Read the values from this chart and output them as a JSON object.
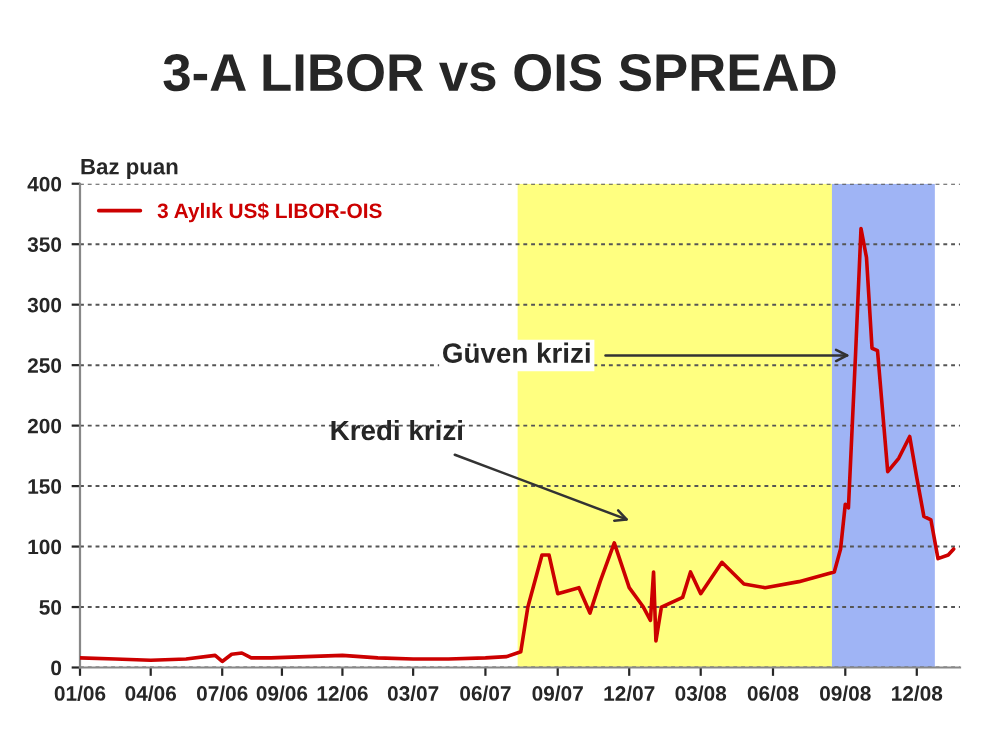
{
  "chart_data": {
    "type": "line",
    "title": "3-A LIBOR vs OIS SPREAD",
    "ylabel": "Baz puan",
    "xlim": [
      "2006-01-01",
      "2009-01-25"
    ],
    "ylim": [
      0,
      400
    ],
    "xticks": [
      {
        "value": "2006-01-01",
        "label": "01/06"
      },
      {
        "value": "2006-04-01",
        "label": "04/06"
      },
      {
        "value": "2006-07-01",
        "label": "07/06"
      },
      {
        "value": "2006-09-15",
        "label": "09/06"
      },
      {
        "value": "2006-12-01",
        "label": "12/06"
      },
      {
        "value": "2007-03-01",
        "label": "03/07"
      },
      {
        "value": "2007-06-01",
        "label": "06/07"
      },
      {
        "value": "2007-09-01",
        "label": "09/07"
      },
      {
        "value": "2007-12-01",
        "label": "12/07"
      },
      {
        "value": "2008-03-01",
        "label": "03/08"
      },
      {
        "value": "2008-06-01",
        "label": "06/08"
      },
      {
        "value": "2008-09-01",
        "label": "09/08"
      },
      {
        "value": "2008-12-01",
        "label": "12/08"
      }
    ],
    "yticks": [
      0,
      50,
      100,
      150,
      200,
      250,
      300,
      350,
      400
    ],
    "grid": "y",
    "legend": "top left",
    "line_style": "solid",
    "marker": "none",
    "bands": [
      {
        "axis": "x",
        "from": "2007-07-12",
        "to": "2008-10-16",
        "color": "#ffff80"
      },
      {
        "axis": "x",
        "from": "2008-08-15",
        "to": "2008-12-24",
        "color": "#9fb4f5"
      }
    ],
    "annotations": [
      "Kredi krizi",
      {
        "text": "Güven krizi",
        "x": "2008-09-14",
        "y": 258
      }
    ],
    "series": [
      {
        "name": "3 Aylık US$ LIBOR-OIS",
        "color": "#cc0000",
        "x": [
          "2006-01-01",
          "2006-02-15",
          "2006-04-01",
          "2006-05-16",
          "2006-06-22",
          "2006-07-01",
          "2006-07-13",
          "2006-07-26",
          "2006-08-07",
          "2006-09-01",
          "2006-10-16",
          "2006-12-01",
          "2007-01-15",
          "2007-03-01",
          "2007-04-15",
          "2007-06-01",
          "2007-06-28",
          "2007-07-16",
          "2007-07-25",
          "2007-08-12",
          "2007-08-21",
          "2007-09-01",
          "2007-09-28",
          "2007-10-12",
          "2007-10-25",
          "2007-11-12",
          "2007-12-01",
          "2007-12-19",
          "2007-12-28",
          "2008-01-01",
          "2008-01-04",
          "2008-01-11",
          "2008-02-07",
          "2008-02-17",
          "2008-03-01",
          "2008-03-28",
          "2008-04-25",
          "2008-05-22",
          "2008-07-04",
          "2008-08-18",
          "2008-08-26",
          "2008-09-01",
          "2008-09-05",
          "2008-09-14",
          "2008-09-21",
          "2008-09-28",
          "2008-10-05",
          "2008-10-12",
          "2008-10-25",
          "2008-11-08",
          "2008-11-22",
          "2008-12-01",
          "2008-12-10",
          "2008-12-19",
          "2008-12-28",
          "2009-01-10",
          "2009-01-17"
        ],
        "values": [
          8,
          7,
          6,
          7,
          10,
          5,
          11,
          12,
          8,
          8,
          9,
          10,
          8,
          7,
          7,
          8,
          9,
          13,
          50,
          93,
          93,
          61,
          66,
          45,
          71,
          103,
          66,
          50,
          39,
          79,
          22,
          50,
          58,
          79,
          61,
          87,
          69,
          66,
          71,
          79,
          98,
          135,
          132,
          258,
          363,
          339,
          264,
          262,
          162,
          173,
          191,
          157,
          125,
          122,
          90,
          93,
          98
        ]
      }
    ]
  }
}
